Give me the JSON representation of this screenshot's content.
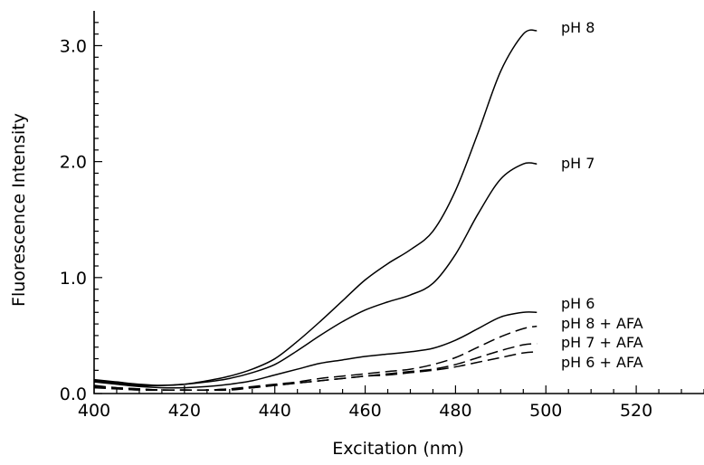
{
  "chart_data": {
    "type": "line",
    "title": "",
    "xlabel": "Excitation (nm)",
    "ylabel": "Fluorescence Intensity",
    "xlim": [
      400,
      535
    ],
    "ylim": [
      0,
      3.3
    ],
    "xticks": [
      400,
      420,
      440,
      460,
      480,
      500,
      520
    ],
    "xtick_labels": [
      "400",
      "420",
      "440",
      "460",
      "480",
      "500",
      "520"
    ],
    "yticks": [
      0.0,
      1.0,
      2.0,
      3.0
    ],
    "ytick_labels": [
      "0.0",
      "1.0",
      "2.0",
      "3.0"
    ],
    "grid": false,
    "legend": "labels at right end of each curve",
    "series": [
      {
        "name": "pH 8",
        "style": "solid",
        "x": [
          400,
          405,
          410,
          415,
          420,
          425,
          430,
          435,
          440,
          445,
          450,
          455,
          460,
          465,
          470,
          475,
          480,
          485,
          490,
          495,
          498
        ],
        "y": [
          0.12,
          0.1,
          0.08,
          0.07,
          0.08,
          0.11,
          0.15,
          0.21,
          0.3,
          0.45,
          0.62,
          0.8,
          0.98,
          1.12,
          1.24,
          1.4,
          1.75,
          2.25,
          2.78,
          3.1,
          3.13
        ]
      },
      {
        "name": "pH 7",
        "style": "solid",
        "x": [
          400,
          405,
          410,
          415,
          420,
          425,
          430,
          435,
          440,
          445,
          450,
          455,
          460,
          465,
          470,
          475,
          480,
          485,
          490,
          495,
          498
        ],
        "y": [
          0.11,
          0.09,
          0.07,
          0.07,
          0.08,
          0.1,
          0.13,
          0.18,
          0.25,
          0.37,
          0.5,
          0.62,
          0.72,
          0.79,
          0.85,
          0.95,
          1.2,
          1.55,
          1.85,
          1.98,
          1.98
        ]
      },
      {
        "name": "pH 6",
        "style": "solid",
        "x": [
          400,
          405,
          410,
          415,
          420,
          425,
          430,
          435,
          440,
          445,
          450,
          455,
          460,
          465,
          470,
          475,
          480,
          485,
          490,
          495,
          498
        ],
        "y": [
          0.1,
          0.08,
          0.06,
          0.05,
          0.05,
          0.06,
          0.08,
          0.11,
          0.16,
          0.21,
          0.26,
          0.29,
          0.32,
          0.34,
          0.36,
          0.39,
          0.46,
          0.56,
          0.66,
          0.7,
          0.7
        ]
      },
      {
        "name": "pH 8 + AFA",
        "style": "dashed",
        "x": [
          400,
          405,
          410,
          415,
          420,
          425,
          430,
          435,
          440,
          445,
          450,
          455,
          460,
          465,
          470,
          475,
          480,
          485,
          490,
          495,
          498
        ],
        "y": [
          0.07,
          0.05,
          0.04,
          0.03,
          0.03,
          0.03,
          0.04,
          0.06,
          0.08,
          0.1,
          0.13,
          0.15,
          0.17,
          0.19,
          0.21,
          0.25,
          0.31,
          0.4,
          0.49,
          0.56,
          0.58
        ]
      },
      {
        "name": "pH 7 + AFA",
        "style": "dashed",
        "x": [
          400,
          405,
          410,
          415,
          420,
          425,
          430,
          435,
          440,
          445,
          450,
          455,
          460,
          465,
          470,
          475,
          480,
          485,
          490,
          495,
          498
        ],
        "y": [
          0.06,
          0.05,
          0.04,
          0.03,
          0.03,
          0.03,
          0.04,
          0.05,
          0.07,
          0.09,
          0.11,
          0.13,
          0.15,
          0.17,
          0.19,
          0.21,
          0.25,
          0.31,
          0.37,
          0.42,
          0.43
        ]
      },
      {
        "name": "pH 6 + AFA",
        "style": "dashed",
        "x": [
          400,
          405,
          410,
          415,
          420,
          425,
          430,
          435,
          440,
          445,
          450,
          455,
          460,
          465,
          470,
          475,
          480,
          485,
          490,
          495,
          498
        ],
        "y": [
          0.05,
          0.04,
          0.03,
          0.03,
          0.03,
          0.03,
          0.03,
          0.05,
          0.07,
          0.09,
          0.11,
          0.13,
          0.15,
          0.16,
          0.18,
          0.2,
          0.23,
          0.27,
          0.31,
          0.35,
          0.36
        ]
      }
    ]
  }
}
